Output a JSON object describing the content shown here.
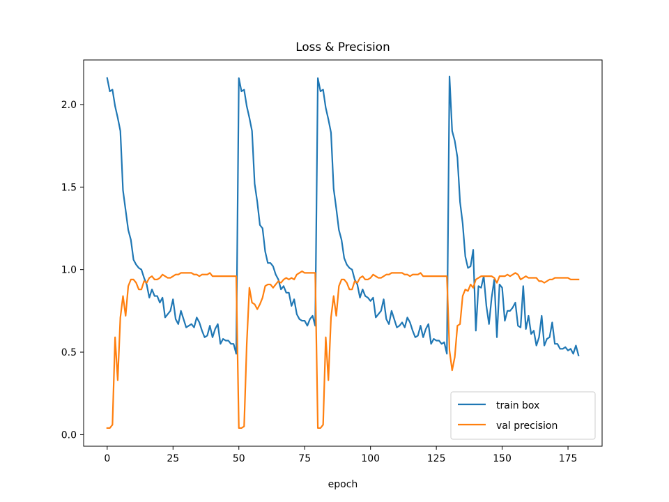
{
  "chart_data": {
    "type": "line",
    "title": "Loss & Precision",
    "xlabel": "epoch",
    "ylabel": "",
    "xlim": [
      -8.95,
      187.95
    ],
    "ylim": [
      -0.07,
      2.27
    ],
    "x_ticks": [
      0,
      25,
      50,
      75,
      100,
      125,
      150,
      175
    ],
    "y_ticks": [
      0.0,
      0.5,
      1.0,
      1.5,
      2.0
    ],
    "x_tick_labels": [
      "0",
      "25",
      "50",
      "75",
      "100",
      "125",
      "150",
      "175"
    ],
    "y_tick_labels": [
      "0.0",
      "0.5",
      "1.0",
      "1.5",
      "2.0"
    ],
    "grid": false,
    "legend": "lower-right",
    "series": [
      {
        "name": "train box",
        "color": "#1f77b4",
        "x": [
          0,
          1,
          2,
          3,
          4,
          5,
          6,
          7,
          8,
          9,
          10,
          11,
          12,
          13,
          14,
          15,
          16,
          17,
          18,
          19,
          20,
          21,
          22,
          23,
          24,
          25,
          26,
          27,
          28,
          29,
          30,
          31,
          32,
          33,
          34,
          35,
          36,
          37,
          38,
          39,
          40,
          41,
          42,
          43,
          44,
          45,
          46,
          47,
          48,
          49,
          50,
          51,
          52,
          53,
          54,
          55,
          56,
          57,
          58,
          59,
          60,
          61,
          62,
          63,
          64,
          65,
          66,
          67,
          68,
          69,
          70,
          71,
          72,
          73,
          74,
          75,
          76,
          77,
          78,
          79,
          80,
          81,
          82,
          83,
          84,
          85,
          86,
          87,
          88,
          89,
          90,
          91,
          92,
          93,
          94,
          95,
          96,
          97,
          98,
          99,
          100,
          101,
          102,
          103,
          104,
          105,
          106,
          107,
          108,
          109,
          110,
          111,
          112,
          113,
          114,
          115,
          116,
          117,
          118,
          119,
          120,
          121,
          122,
          123,
          124,
          125,
          126,
          127,
          128,
          129,
          130,
          131,
          132,
          133,
          134,
          135,
          136,
          137,
          138,
          139,
          140,
          141,
          142,
          143,
          144,
          145,
          146,
          147,
          148,
          149,
          150,
          151,
          152,
          153,
          154,
          155,
          156,
          157,
          158,
          159,
          160,
          161,
          162,
          163,
          164,
          165,
          166,
          167,
          168,
          169,
          170,
          171,
          172,
          173,
          174,
          175,
          176,
          177,
          178,
          179
        ],
        "y": [
          2.16,
          2.08,
          2.09,
          1.99,
          1.92,
          1.84,
          1.48,
          1.36,
          1.24,
          1.18,
          1.06,
          1.03,
          1.01,
          1.0,
          0.95,
          0.91,
          0.83,
          0.88,
          0.84,
          0.84,
          0.8,
          0.83,
          0.71,
          0.73,
          0.75,
          0.82,
          0.7,
          0.67,
          0.75,
          0.7,
          0.65,
          0.66,
          0.67,
          0.65,
          0.71,
          0.68,
          0.63,
          0.59,
          0.6,
          0.66,
          0.59,
          0.64,
          0.67,
          0.55,
          0.58,
          0.57,
          0.57,
          0.55,
          0.55,
          0.49,
          2.16,
          2.08,
          2.09,
          1.99,
          1.92,
          1.84,
          1.52,
          1.41,
          1.27,
          1.25,
          1.11,
          1.04,
          1.04,
          1.02,
          0.97,
          0.94,
          0.88,
          0.9,
          0.86,
          0.86,
          0.78,
          0.82,
          0.73,
          0.7,
          0.69,
          0.69,
          0.66,
          0.7,
          0.72,
          0.66,
          2.16,
          2.08,
          2.09,
          1.98,
          1.91,
          1.83,
          1.49,
          1.37,
          1.24,
          1.18,
          1.07,
          1.03,
          1.01,
          1.0,
          0.94,
          0.91,
          0.83,
          0.88,
          0.84,
          0.83,
          0.81,
          0.83,
          0.71,
          0.73,
          0.75,
          0.82,
          0.7,
          0.67,
          0.75,
          0.7,
          0.65,
          0.66,
          0.68,
          0.65,
          0.71,
          0.68,
          0.63,
          0.59,
          0.6,
          0.66,
          0.59,
          0.64,
          0.67,
          0.55,
          0.58,
          0.57,
          0.57,
          0.55,
          0.56,
          0.49,
          2.17,
          1.84,
          1.78,
          1.68,
          1.41,
          1.28,
          1.08,
          1.01,
          1.02,
          1.12,
          0.63,
          0.9,
          0.89,
          0.96,
          0.78,
          0.67,
          0.83,
          0.94,
          0.59,
          0.91,
          0.89,
          0.69,
          0.75,
          0.75,
          0.77,
          0.8,
          0.66,
          0.65,
          0.9,
          0.64,
          0.72,
          0.61,
          0.63,
          0.54,
          0.59,
          0.72,
          0.54,
          0.58,
          0.59,
          0.68,
          0.55,
          0.55,
          0.52,
          0.52,
          0.53,
          0.51,
          0.52,
          0.49,
          0.54,
          0.48
        ]
      },
      {
        "name": "val precision",
        "color": "#ff7f0e",
        "x": [
          0,
          1,
          2,
          3,
          4,
          5,
          6,
          7,
          8,
          9,
          10,
          11,
          12,
          13,
          14,
          15,
          16,
          17,
          18,
          19,
          20,
          21,
          22,
          23,
          24,
          25,
          26,
          27,
          28,
          29,
          30,
          31,
          32,
          33,
          34,
          35,
          36,
          37,
          38,
          39,
          40,
          41,
          42,
          43,
          44,
          45,
          46,
          47,
          48,
          49,
          50,
          51,
          52,
          53,
          54,
          55,
          56,
          57,
          58,
          59,
          60,
          61,
          62,
          63,
          64,
          65,
          66,
          67,
          68,
          69,
          70,
          71,
          72,
          73,
          74,
          75,
          76,
          77,
          78,
          79,
          80,
          81,
          82,
          83,
          84,
          85,
          86,
          87,
          88,
          89,
          90,
          91,
          92,
          93,
          94,
          95,
          96,
          97,
          98,
          99,
          100,
          101,
          102,
          103,
          104,
          105,
          106,
          107,
          108,
          109,
          110,
          111,
          112,
          113,
          114,
          115,
          116,
          117,
          118,
          119,
          120,
          121,
          122,
          123,
          124,
          125,
          126,
          127,
          128,
          129,
          130,
          131,
          132,
          133,
          134,
          135,
          136,
          137,
          138,
          139,
          140,
          141,
          142,
          143,
          144,
          145,
          146,
          147,
          148,
          149,
          150,
          151,
          152,
          153,
          154,
          155,
          156,
          157,
          158,
          159,
          160,
          161,
          162,
          163,
          164,
          165,
          166,
          167,
          168,
          169,
          170,
          171,
          172,
          173,
          174,
          175,
          176,
          177,
          178,
          179
        ],
        "y": [
          0.04,
          0.04,
          0.06,
          0.59,
          0.33,
          0.71,
          0.84,
          0.72,
          0.9,
          0.94,
          0.94,
          0.92,
          0.88,
          0.88,
          0.93,
          0.92,
          0.95,
          0.96,
          0.94,
          0.94,
          0.95,
          0.97,
          0.96,
          0.95,
          0.95,
          0.96,
          0.97,
          0.97,
          0.98,
          0.98,
          0.98,
          0.98,
          0.98,
          0.97,
          0.97,
          0.96,
          0.97,
          0.97,
          0.97,
          0.98,
          0.96,
          0.96,
          0.96,
          0.96,
          0.96,
          0.96,
          0.96,
          0.96,
          0.96,
          0.96,
          0.04,
          0.04,
          0.05,
          0.55,
          0.89,
          0.8,
          0.79,
          0.76,
          0.79,
          0.83,
          0.9,
          0.91,
          0.91,
          0.89,
          0.91,
          0.93,
          0.92,
          0.94,
          0.95,
          0.94,
          0.95,
          0.94,
          0.97,
          0.98,
          0.99,
          0.98,
          0.98,
          0.98,
          0.98,
          0.98,
          0.04,
          0.04,
          0.06,
          0.59,
          0.33,
          0.71,
          0.84,
          0.72,
          0.9,
          0.94,
          0.94,
          0.92,
          0.88,
          0.88,
          0.93,
          0.92,
          0.95,
          0.96,
          0.94,
          0.94,
          0.95,
          0.97,
          0.96,
          0.95,
          0.95,
          0.96,
          0.97,
          0.97,
          0.98,
          0.98,
          0.98,
          0.98,
          0.98,
          0.97,
          0.97,
          0.96,
          0.97,
          0.97,
          0.97,
          0.98,
          0.96,
          0.96,
          0.96,
          0.96,
          0.96,
          0.96,
          0.96,
          0.96,
          0.96,
          0.96,
          0.51,
          0.39,
          0.47,
          0.66,
          0.67,
          0.84,
          0.88,
          0.87,
          0.91,
          0.89,
          0.94,
          0.95,
          0.96,
          0.96,
          0.96,
          0.96,
          0.96,
          0.95,
          0.92,
          0.96,
          0.96,
          0.96,
          0.97,
          0.96,
          0.97,
          0.98,
          0.97,
          0.94,
          0.95,
          0.96,
          0.95,
          0.95,
          0.95,
          0.95,
          0.93,
          0.93,
          0.92,
          0.93,
          0.94,
          0.94,
          0.95,
          0.95,
          0.95,
          0.95,
          0.95,
          0.95,
          0.94,
          0.94,
          0.94,
          0.94
        ]
      }
    ]
  }
}
